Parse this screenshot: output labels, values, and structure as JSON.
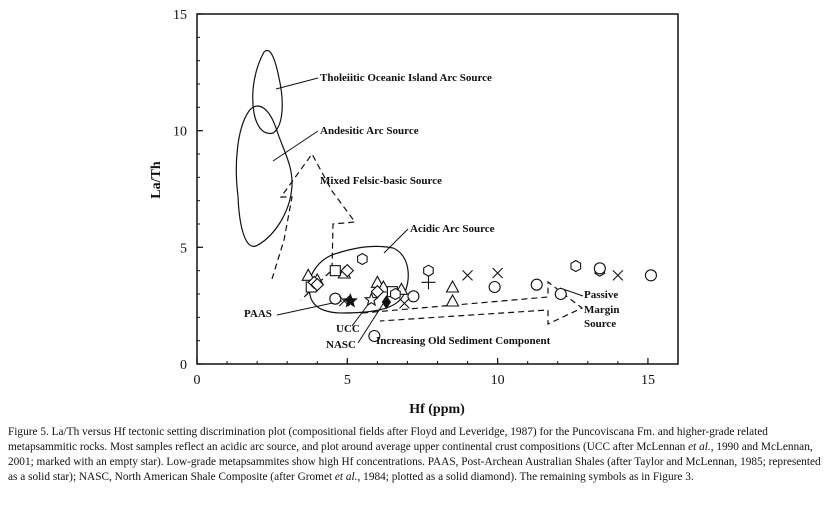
{
  "chart_data": {
    "type": "scatter",
    "xlabel": "Hf (ppm)",
    "ylabel": "La/Th",
    "xlim": [
      0,
      16
    ],
    "ylim": [
      0,
      15
    ],
    "xticks": [
      "0",
      "5",
      "10",
      "15"
    ],
    "yticks": [
      "0",
      "5",
      "10",
      "15"
    ],
    "grid": false,
    "fields": [
      {
        "label": "Tholeiitic Oceanic Island Arc Source",
        "style": "solid"
      },
      {
        "label": "Andesitic Arc Source",
        "style": "solid"
      },
      {
        "label": "Mixed Felsic-basic Source",
        "style": "dashed"
      },
      {
        "label": "Acidic Arc Source",
        "style": "solid"
      },
      {
        "label": "Passive Margin Source",
        "style": "dashed"
      }
    ],
    "labels": {
      "tholeiitic": "Tholeiitic Oceanic Island Arc Source",
      "andesitic": "Andesitic Arc Source",
      "mixed": "Mixed Felsic-basic Source",
      "acidic": "Acidic Arc Source",
      "passive1": "Passive",
      "passive2": "Margin",
      "passive3": "Source",
      "paas": "PAAS",
      "ucc": "UCC",
      "nasc": "NASC",
      "increasing": "Increasing Old Sediment Component"
    },
    "reference_points": [
      {
        "name": "PAAS",
        "x": 5.1,
        "y": 2.7,
        "marker": "solid-star"
      },
      {
        "name": "UCC",
        "x": 5.8,
        "y": 2.75,
        "marker": "empty-star"
      },
      {
        "name": "NASC",
        "x": 6.3,
        "y": 2.65,
        "marker": "solid-diamond"
      }
    ],
    "points": [
      {
        "x": 3.7,
        "y": 3.8,
        "marker": "triangle"
      },
      {
        "x": 4.0,
        "y": 3.6,
        "marker": "triangle"
      },
      {
        "x": 4.9,
        "y": 3.9,
        "marker": "triangle"
      },
      {
        "x": 6.0,
        "y": 3.5,
        "marker": "triangle"
      },
      {
        "x": 6.2,
        "y": 3.3,
        "marker": "triangle"
      },
      {
        "x": 6.8,
        "y": 3.2,
        "marker": "triangle"
      },
      {
        "x": 8.5,
        "y": 3.3,
        "marker": "triangle"
      },
      {
        "x": 8.5,
        "y": 2.7,
        "marker": "triangle"
      },
      {
        "x": 3.8,
        "y": 3.3,
        "marker": "square"
      },
      {
        "x": 4.6,
        "y": 4.0,
        "marker": "square"
      },
      {
        "x": 6.5,
        "y": 3.1,
        "marker": "square"
      },
      {
        "x": 3.9,
        "y": 3.5,
        "marker": "diamond"
      },
      {
        "x": 4.0,
        "y": 3.4,
        "marker": "diamond"
      },
      {
        "x": 5.0,
        "y": 4.0,
        "marker": "diamond"
      },
      {
        "x": 6.0,
        "y": 3.1,
        "marker": "diamond"
      },
      {
        "x": 5.5,
        "y": 4.5,
        "marker": "hexagon"
      },
      {
        "x": 12.6,
        "y": 4.2,
        "marker": "hexagon"
      },
      {
        "x": 13.4,
        "y": 4.0,
        "marker": "hexagon"
      },
      {
        "x": 7.7,
        "y": 4.0,
        "marker": "hexagon"
      },
      {
        "x": 6.6,
        "y": 3.0,
        "marker": "hexagon"
      },
      {
        "x": 4.6,
        "y": 2.8,
        "marker": "circle"
      },
      {
        "x": 5.9,
        "y": 1.2,
        "marker": "circle"
      },
      {
        "x": 7.2,
        "y": 2.9,
        "marker": "circle"
      },
      {
        "x": 9.9,
        "y": 3.3,
        "marker": "circle"
      },
      {
        "x": 11.3,
        "y": 3.4,
        "marker": "circle"
      },
      {
        "x": 12.1,
        "y": 3.0,
        "marker": "circle"
      },
      {
        "x": 13.4,
        "y": 4.1,
        "marker": "circle"
      },
      {
        "x": 15.1,
        "y": 3.8,
        "marker": "circle"
      },
      {
        "x": 4.9,
        "y": 2.7,
        "marker": "x"
      },
      {
        "x": 6.9,
        "y": 2.6,
        "marker": "x"
      },
      {
        "x": 9.0,
        "y": 3.8,
        "marker": "x"
      },
      {
        "x": 10.0,
        "y": 3.9,
        "marker": "x"
      },
      {
        "x": 14.0,
        "y": 3.8,
        "marker": "x"
      },
      {
        "x": 7.7,
        "y": 3.5,
        "marker": "plus"
      }
    ]
  },
  "caption": {
    "lead": "Figure 5. La/Th versus Hf tectonic setting discrimination plot (compositional fields after Floyd and Leveridge, 1987) for the Puncoviscana Fm. and higher-grade related metapsammitic rocks. Most samples reflect an acidic arc source, and plot around average upper continental crust compositions (UCC after McLennan ",
    "etal1": "et al.",
    "mid1": ", 1990 and McLennan, 2001; marked with an empty star). Low-grade metapsammites show high Hf concentrations. PAAS, Post-Archean Australian Shales (after Taylor and McLennan, 1985; represented as a solid star); NASC, North American Shale Composite (after Gromet ",
    "etal2": "et al.",
    "tail": ", 1984; plotted as a solid diamond). The remaining symbols as in Figure 3."
  }
}
